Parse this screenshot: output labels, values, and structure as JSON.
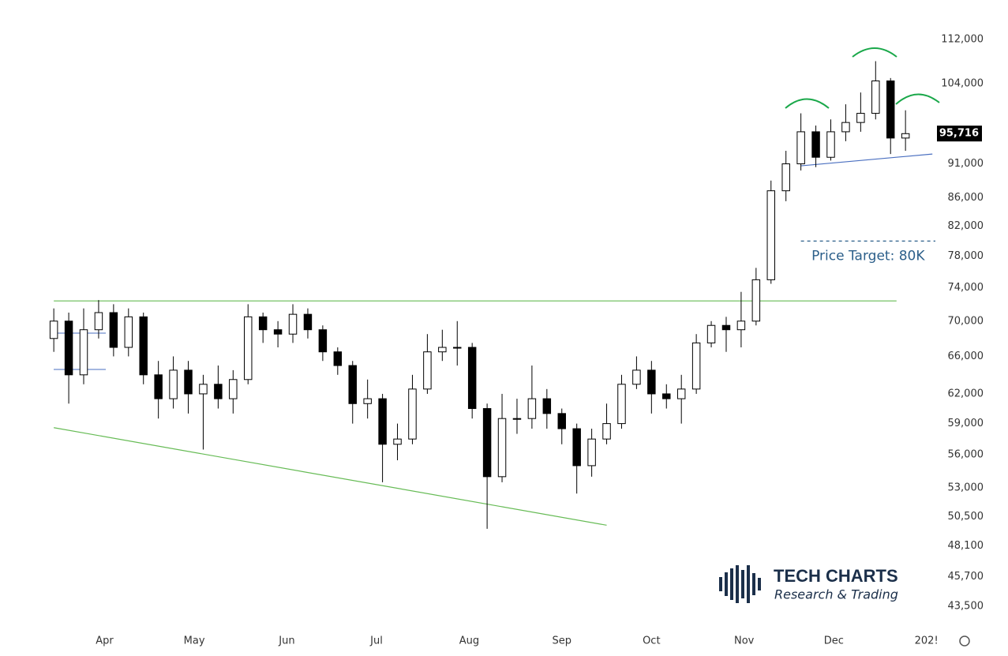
{
  "chart_data": {
    "type": "candlestick",
    "x": [
      14,
      19,
      24,
      29,
      34,
      39,
      44,
      49,
      54,
      59,
      64,
      69,
      74,
      79,
      84,
      89,
      94,
      99,
      104,
      109,
      114,
      119,
      124,
      129,
      134,
      139,
      144,
      149,
      154,
      159,
      164,
      169,
      174,
      179,
      184,
      189,
      194,
      199,
      204,
      209,
      214,
      219,
      224,
      229,
      234,
      239,
      244,
      249,
      254,
      259,
      264,
      269,
      274,
      279,
      284,
      289,
      294,
      299
    ],
    "open": [
      68000,
      70000,
      64000,
      69000,
      71000,
      67000,
      70500,
      64000,
      61500,
      64500,
      62000,
      63000,
      61500,
      63500,
      70500,
      69000,
      68500,
      70800,
      69000,
      66500,
      65000,
      61000,
      61500,
      57000,
      57500,
      62500,
      66500,
      67000,
      67000,
      60500,
      54000,
      59500,
      59500,
      61500,
      60000,
      58500,
      55000,
      57500,
      59000,
      63000,
      64500,
      62000,
      61500,
      62500,
      67500,
      69500,
      69000,
      70000,
      75000,
      87000,
      91000,
      96000,
      92000,
      96000,
      97500,
      99000,
      104500,
      95000
    ],
    "high": [
      71500,
      71000,
      71500,
      72500,
      72000,
      71500,
      71000,
      65500,
      66000,
      65500,
      64000,
      65000,
      64500,
      72000,
      71000,
      70000,
      72000,
      71500,
      69500,
      67000,
      65500,
      63500,
      62000,
      59000,
      64000,
      68500,
      69000,
      70000,
      67500,
      61000,
      62000,
      61500,
      65000,
      62500,
      60500,
      59000,
      58500,
      61000,
      64000,
      66000,
      65500,
      63000,
      64000,
      68500,
      70000,
      70500,
      73500,
      76500,
      88500,
      93000,
      99000,
      97000,
      98000,
      100500,
      102500,
      108000,
      105000,
      99500
    ],
    "low": [
      66500,
      61000,
      63000,
      68000,
      66000,
      66000,
      63000,
      59500,
      60500,
      60000,
      56500,
      60500,
      60000,
      63000,
      67500,
      67000,
      67500,
      68000,
      65500,
      64000,
      59000,
      59500,
      53500,
      55500,
      57000,
      62000,
      65500,
      65000,
      59500,
      49500,
      53500,
      58000,
      58500,
      58500,
      57000,
      52500,
      54000,
      57000,
      58500,
      62500,
      60000,
      60500,
      59000,
      62000,
      67000,
      66500,
      67000,
      69500,
      74500,
      85500,
      90000,
      90500,
      91500,
      94500,
      96000,
      98000,
      92500,
      93000
    ],
    "close": [
      70000,
      64000,
      69000,
      71000,
      67000,
      70500,
      64000,
      61500,
      64500,
      62000,
      63000,
      61500,
      63500,
      70500,
      69000,
      68500,
      70800,
      69000,
      66500,
      65000,
      61000,
      61500,
      57000,
      57500,
      62500,
      66500,
      67000,
      67000,
      60500,
      54000,
      59500,
      59500,
      61500,
      60000,
      58500,
      55000,
      57500,
      59000,
      63000,
      64500,
      62000,
      61500,
      62500,
      67500,
      69500,
      69000,
      70000,
      75000,
      87000,
      91000,
      96000,
      92000,
      96000,
      97500,
      99000,
      104500,
      95000,
      95700
    ],
    "up_color": "#ffffff",
    "down_color": "#000000",
    "wick_color": "#000000",
    "xlim": [
      -4,
      309
    ],
    "xticks": [
      {
        "value": 31,
        "label": "Apr"
      },
      {
        "value": 61,
        "label": "May"
      },
      {
        "value": 92,
        "label": "Jun"
      },
      {
        "value": 122,
        "label": "Jul"
      },
      {
        "value": 153,
        "label": "Aug"
      },
      {
        "value": 184,
        "label": "Sep"
      },
      {
        "value": 214,
        "label": "Oct"
      },
      {
        "value": 245,
        "label": "Nov"
      },
      {
        "value": 275,
        "label": "Dec"
      },
      {
        "value": 306,
        "label": "202!"
      }
    ],
    "ylim": [
      42260,
      119600
    ],
    "log_scale": true,
    "grid": false,
    "yticks": [
      {
        "value": 112000,
        "label": "112,000"
      },
      {
        "value": 104000,
        "label": "104,000"
      },
      {
        "value": 91000,
        "label": "91,000"
      },
      {
        "value": 86000,
        "label": "86,000"
      },
      {
        "value": 82000,
        "label": "82,000"
      },
      {
        "value": 78000,
        "label": "78,000"
      },
      {
        "value": 74000,
        "label": "74,000"
      },
      {
        "value": 70000,
        "label": "70,000"
      },
      {
        "value": 66000,
        "label": "66,000"
      },
      {
        "value": 62000,
        "label": "62,000"
      },
      {
        "value": 59000,
        "label": "59,000"
      },
      {
        "value": 56000,
        "label": "56,000"
      },
      {
        "value": 53000,
        "label": "53,000"
      },
      {
        "value": 50500,
        "label": "50,500"
      },
      {
        "value": 48100,
        "label": "48,100"
      },
      {
        "value": 45700,
        "label": "45,700"
      },
      {
        "value": 43500,
        "label": "43,500"
      }
    ],
    "last_price": {
      "value": 95716,
      "label": "95,716"
    },
    "trendlines": [
      {
        "color": "#66bb55",
        "x": [
          14,
          296
        ],
        "y": [
          72400,
          72400
        ]
      },
      {
        "color": "#66bb55",
        "x": [
          14,
          199
        ],
        "y": [
          58600,
          49800
        ]
      },
      {
        "color": "#4a6fc0",
        "x": [
          264,
          308
        ],
        "y": [
          90700,
          92500
        ]
      }
    ],
    "price_target": {
      "value": 80000,
      "x": [
        264,
        309
      ],
      "color": "#2c5f8a",
      "text": "Price Target: 80K"
    },
    "logo": {
      "title": "TECH CHARTS",
      "subtitle": "Research & Trading"
    }
  }
}
